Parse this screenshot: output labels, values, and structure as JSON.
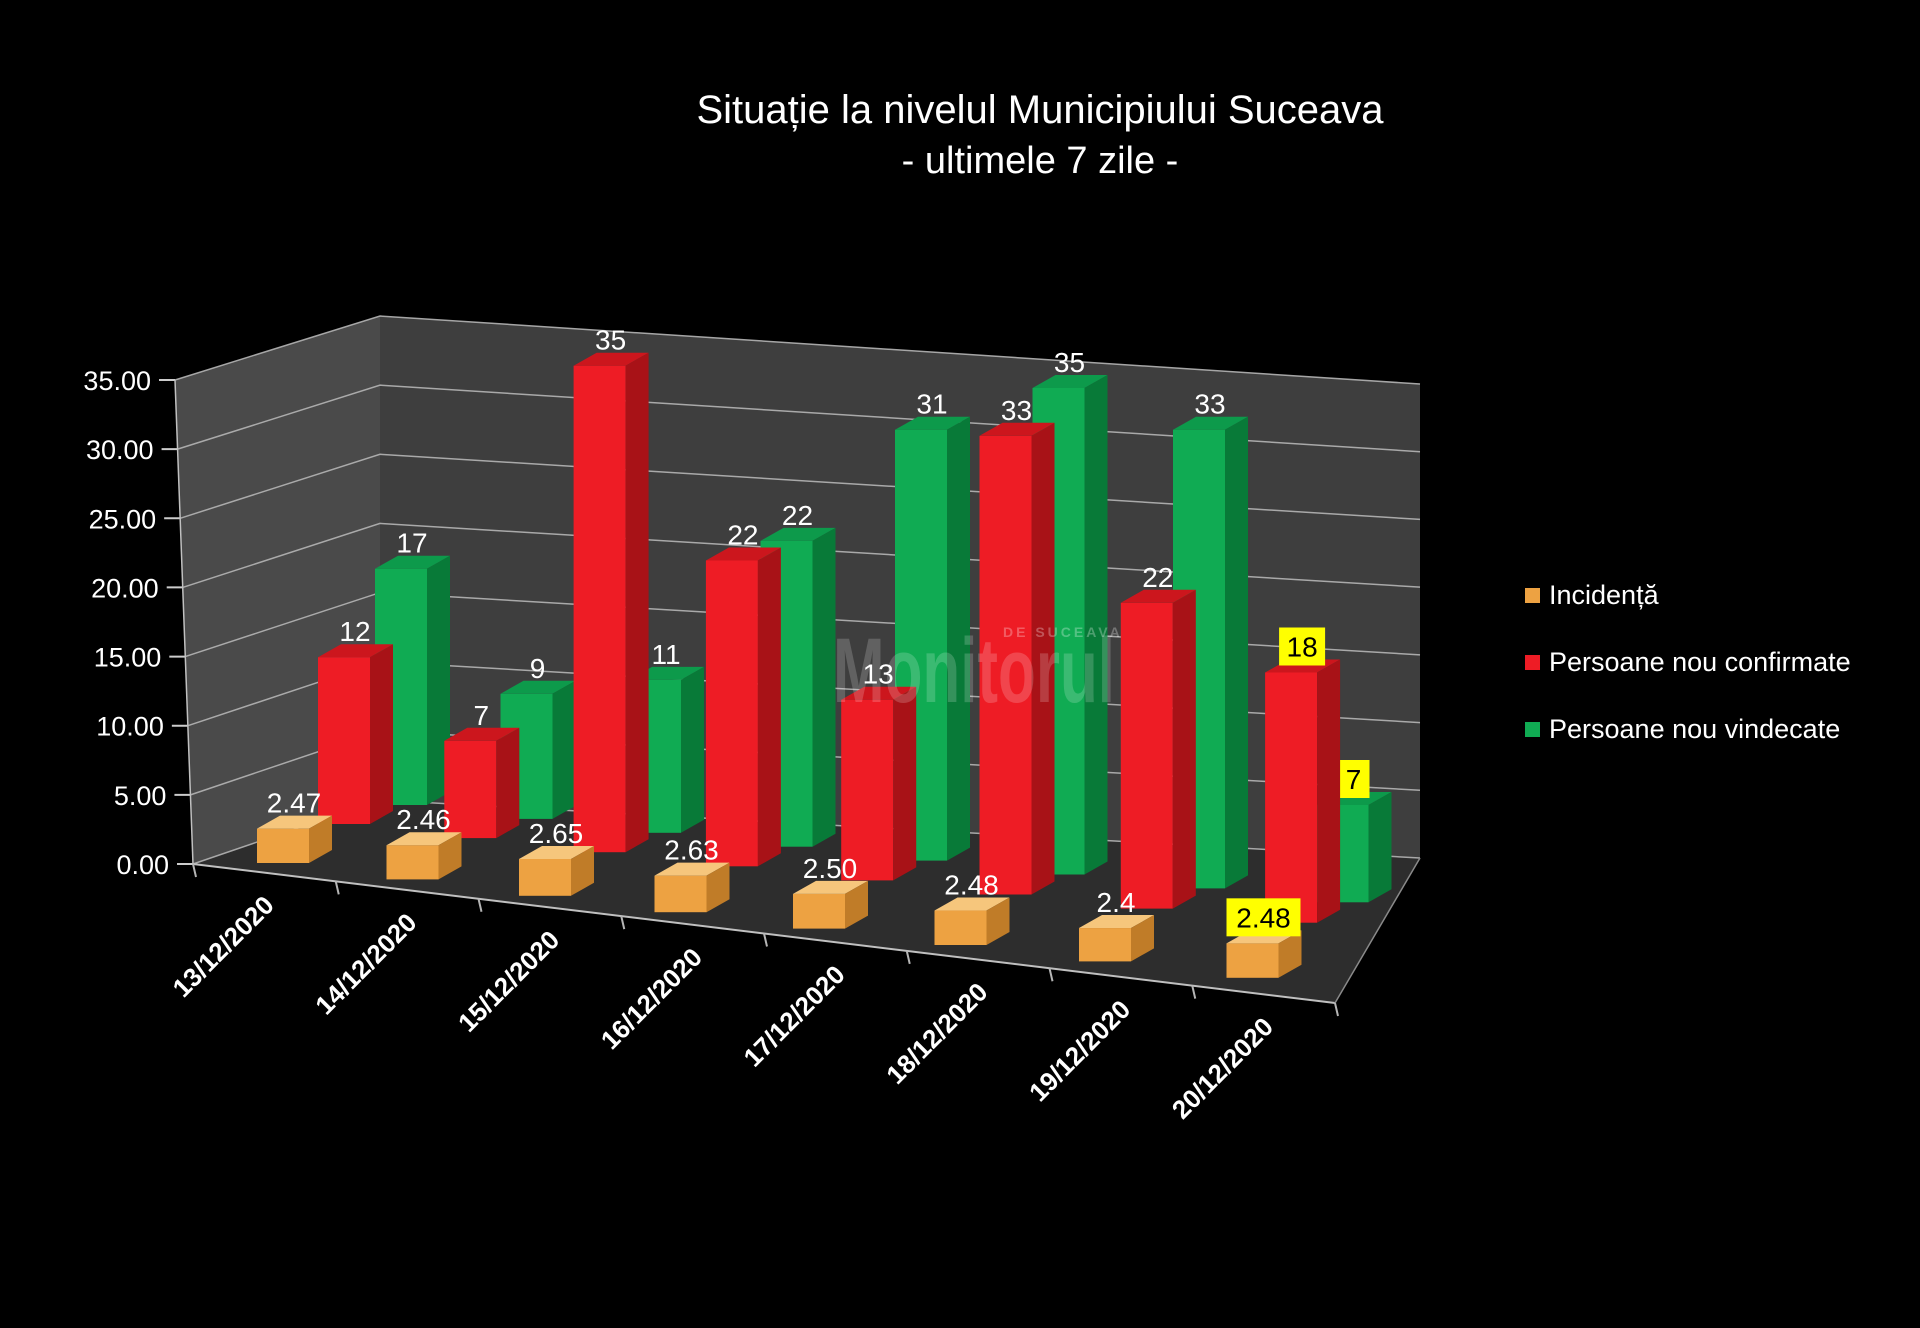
{
  "title": {
    "line1": "Situație la nivelul Municipiului Suceava",
    "line2": "- ultimele 7 zile -"
  },
  "legend": [
    {
      "label": "Incidență",
      "color": "#eda242"
    },
    {
      "label": "Persoane nou confirmate",
      "color": "#ee1c25"
    },
    {
      "label": "Persoane nou vindecate",
      "color": "#10ab53"
    }
  ],
  "watermark": {
    "big": "Monitorul",
    "small": "DE SUCEAVA"
  },
  "chart_data": {
    "type": "bar",
    "projection": "3d-column",
    "title": "Situație la nivelul Municipiului Suceava - ultimele 7 zile -",
    "background": "#000000",
    "grid": true,
    "legend_position": "right",
    "categories": [
      "13/12/2020",
      "14/12/2020",
      "15/12/2020",
      "16/12/2020",
      "17/12/2020",
      "18/12/2020",
      "19/12/2020",
      "20/12/2020"
    ],
    "series": [
      {
        "name": "Incidență",
        "color": "#eda242",
        "color_top": "#f6c67c",
        "color_side": "#c07c28",
        "values": [
          2.47,
          2.46,
          2.65,
          2.63,
          2.5,
          2.48,
          2.4,
          2.48
        ],
        "labels": [
          "2.47",
          "2.46",
          "2.65",
          "2.63",
          "2.50",
          "2.48",
          "2.4",
          "2.48"
        ]
      },
      {
        "name": "Persoane nou confirmate",
        "color": "#ee1c25",
        "color_top": "#cc161d",
        "color_side": "#a81217",
        "values": [
          12,
          7,
          35,
          22,
          13,
          33,
          22,
          18
        ],
        "labels": [
          "12",
          "7",
          "35",
          "22",
          "13",
          "33",
          "22",
          "18"
        ]
      },
      {
        "name": "Persoane nou vindecate",
        "color": "#10ab53",
        "color_top": "#0d9a4b",
        "color_side": "#087a38",
        "values": [
          17,
          9,
          11,
          22,
          31,
          35,
          33,
          7
        ],
        "labels": [
          "17",
          "9",
          "11",
          "22",
          "31",
          "35",
          "33",
          "7"
        ]
      }
    ],
    "y_axis": {
      "min": 0,
      "max": 35,
      "step": 5,
      "tick_labels": [
        "35.00",
        "30.00",
        "25.00",
        "20.00",
        "15.00",
        "10.00",
        "5.00",
        "0.00"
      ]
    },
    "ylim": [
      0,
      35
    ],
    "highlight": {
      "category_index": 7,
      "background": "#ffff00",
      "text_color": "#000000"
    }
  }
}
